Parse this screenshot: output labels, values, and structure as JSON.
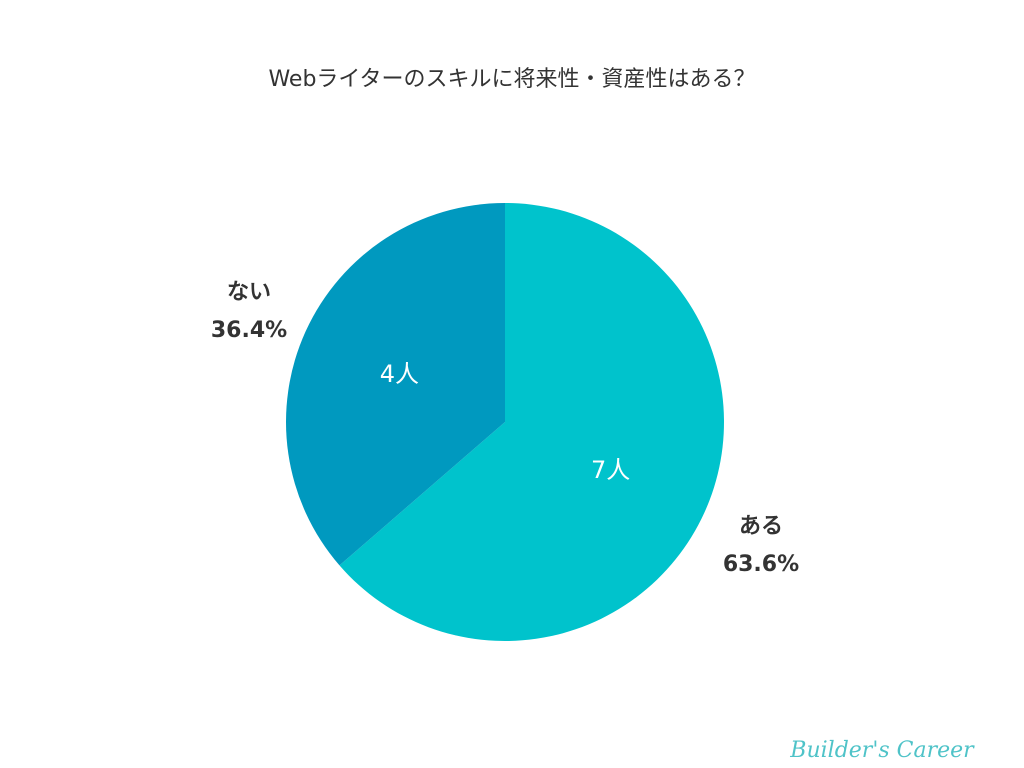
{
  "chart_data": {
    "type": "pie",
    "title": "Webライターのスキルに将来性・資産性はある？",
    "slices": [
      {
        "label": "ある",
        "value": 7,
        "count_label": "7人",
        "percent_label": "63.6%",
        "color": "#00c3cc"
      },
      {
        "label": "ない",
        "value": 4,
        "count_label": "4人",
        "percent_label": "36.4%",
        "color": "#0099bf"
      }
    ],
    "start_angle_deg": 0,
    "direction": "clockwise"
  },
  "watermark": "Builder's Career"
}
